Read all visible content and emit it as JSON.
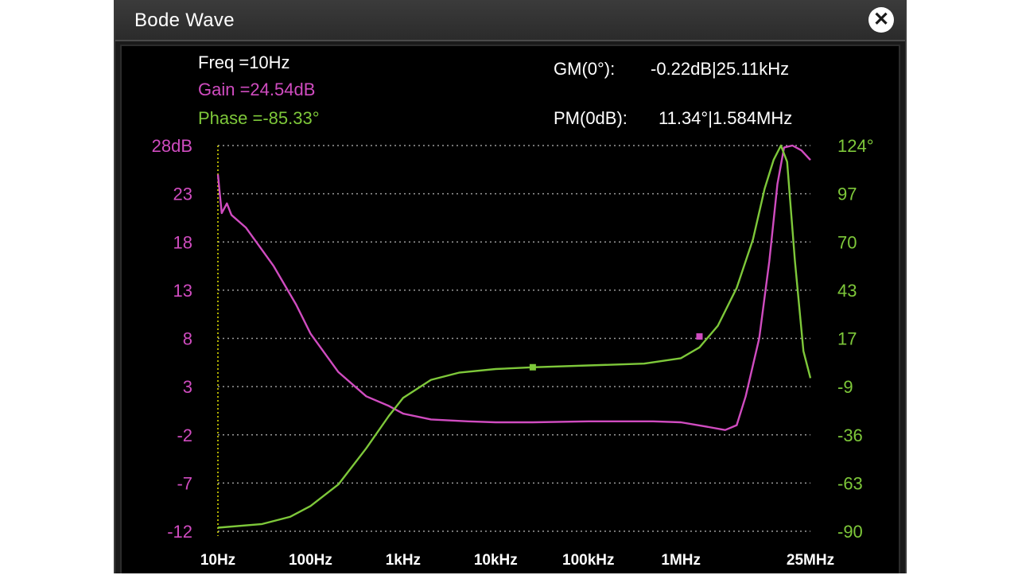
{
  "window": {
    "title": "Bode Wave",
    "close_icon": "close-icon"
  },
  "readouts": {
    "freq": "Freq =10Hz",
    "gain": "Gain =24.54dB",
    "phase": "Phase =-85.33°",
    "gm_label": "GM(0°):",
    "gm_value": "-0.22dB|25.11kHz",
    "pm_label": "PM(0dB):",
    "pm_value": "11.34°|1.584MHz"
  },
  "colors": {
    "gain": "#d04cc0",
    "phase": "#7ec83a",
    "grid": "#9a9a9a",
    "cursor": "#e8e800"
  },
  "chart_data": {
    "type": "line",
    "x_scale": "log",
    "x_ticks": [
      "10Hz",
      "100Hz",
      "1kHz",
      "10kHz",
      "100kHz",
      "1MHz",
      "25MHz"
    ],
    "x_tick_values": [
      10,
      100,
      1000,
      10000,
      100000,
      1000000,
      25000000
    ],
    "xlim": [
      10,
      25000000
    ],
    "y_left_ticks": [
      "28dB",
      "23",
      "18",
      "13",
      "8",
      "3",
      "-2",
      "-7",
      "-12"
    ],
    "y_left_lim": [
      -12,
      28
    ],
    "y_right_ticks": [
      "124°",
      "97",
      "70",
      "43",
      "17",
      "-9",
      "-36",
      "-63",
      "-90"
    ],
    "y_right_lim": [
      -90,
      124
    ],
    "grid": true,
    "series": [
      {
        "axis": "left",
        "points": [
          [
            10,
            25.0
          ],
          [
            11,
            21.0
          ],
          [
            12.5,
            22.0
          ],
          [
            14,
            20.8
          ],
          [
            20,
            19.5
          ],
          [
            40,
            15.5
          ],
          [
            70,
            11.5
          ],
          [
            100,
            8.5
          ],
          [
            200,
            4.5
          ],
          [
            400,
            2.0
          ],
          [
            700,
            1.0
          ],
          [
            1000,
            0.2
          ],
          [
            2000,
            -0.4
          ],
          [
            5000,
            -0.6
          ],
          [
            10000,
            -0.7
          ],
          [
            25110,
            -0.7
          ],
          [
            100000,
            -0.6
          ],
          [
            500000,
            -0.6
          ],
          [
            1000000,
            -0.7
          ],
          [
            2000000,
            -1.2
          ],
          [
            3000000,
            -1.5
          ],
          [
            4000000,
            -1.0
          ],
          [
            5000000,
            2.0
          ],
          [
            7000000,
            8.0
          ],
          [
            9000000,
            16.0
          ],
          [
            11000000,
            24.0
          ],
          [
            13000000,
            27.8
          ],
          [
            16000000,
            28.0
          ],
          [
            20000000,
            27.5
          ],
          [
            25000000,
            26.5
          ]
        ],
        "marker": [
          1584000,
          8.2
        ]
      },
      {
        "axis": "right",
        "points": [
          [
            10,
            -88
          ],
          [
            30,
            -86
          ],
          [
            60,
            -82
          ],
          [
            100,
            -76
          ],
          [
            200,
            -64
          ],
          [
            400,
            -44
          ],
          [
            700,
            -26
          ],
          [
            1000,
            -16
          ],
          [
            2000,
            -6
          ],
          [
            4000,
            -2
          ],
          [
            10000,
            0
          ],
          [
            25110,
            1
          ],
          [
            100000,
            2
          ],
          [
            400000,
            3
          ],
          [
            1000000,
            6
          ],
          [
            1584000,
            12
          ],
          [
            2500000,
            24
          ],
          [
            4000000,
            45
          ],
          [
            6000000,
            72
          ],
          [
            8000000,
            100
          ],
          [
            10000000,
            116
          ],
          [
            12000000,
            124
          ],
          [
            14000000,
            115
          ],
          [
            17000000,
            60
          ],
          [
            21000000,
            10
          ],
          [
            25000000,
            -5
          ]
        ],
        "marker": [
          25110,
          1
        ]
      }
    ]
  }
}
